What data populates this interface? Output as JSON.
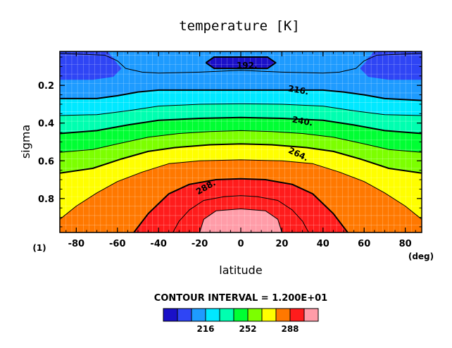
{
  "chart_data": {
    "type": "heatmap",
    "title": "temperature [K]",
    "xlabel": "latitude",
    "ylabel": "sigma",
    "x_unit": "(deg)",
    "panel_index": "(1)",
    "xlim": [
      -88,
      88
    ],
    "ylim": [
      0.02,
      0.98
    ],
    "y_inverted": true,
    "xticks": [
      -80,
      -60,
      -40,
      -20,
      0,
      20,
      40,
      60,
      80
    ],
    "yticks": [
      0.2,
      0.4,
      0.6,
      0.8
    ],
    "contour_interval_text": "CONTOUR INTERVAL = 1.200E+01",
    "contour_labels": [
      "192.",
      "216.",
      "240.",
      "264.",
      "288."
    ],
    "levels": [
      192,
      204,
      216,
      228,
      240,
      252,
      264,
      276,
      288,
      300
    ],
    "colorbar_ticks": [
      "216",
      "252",
      "288"
    ],
    "palette": [
      "#1a10c8",
      "#2f45f5",
      "#1e9bff",
      "#00e8ff",
      "#00ffb0",
      "#00ff33",
      "#7cff00",
      "#ffff00",
      "#ff7800",
      "#ff1c1c",
      "#ff9ca8"
    ],
    "contours": [
      {
        "level": 192,
        "points": [
          [
            -17,
            0.08
          ],
          [
            -13,
            0.05
          ],
          [
            13,
            0.05
          ],
          [
            17,
            0.08
          ],
          [
            13,
            0.11
          ],
          [
            -13,
            0.11
          ],
          [
            -17,
            0.08
          ]
        ]
      },
      {
        "level": 204,
        "points": [
          [
            -88,
            0.03
          ],
          [
            -66,
            0.04
          ],
          [
            -60,
            0.07
          ],
          [
            -56,
            0.11
          ],
          [
            -48,
            0.13
          ],
          [
            -40,
            0.135
          ],
          [
            -20,
            0.13
          ],
          [
            0,
            0.12
          ],
          [
            20,
            0.13
          ],
          [
            40,
            0.135
          ],
          [
            48,
            0.13
          ],
          [
            56,
            0.11
          ],
          [
            60,
            0.07
          ],
          [
            66,
            0.04
          ],
          [
            88,
            0.03
          ]
        ]
      },
      {
        "level": 216,
        "points": [
          [
            -88,
            0.27
          ],
          [
            -70,
            0.27
          ],
          [
            -60,
            0.255
          ],
          [
            -50,
            0.235
          ],
          [
            -40,
            0.225
          ],
          [
            -20,
            0.225
          ],
          [
            0,
            0.225
          ],
          [
            20,
            0.225
          ],
          [
            40,
            0.225
          ],
          [
            50,
            0.235
          ],
          [
            60,
            0.25
          ],
          [
            70,
            0.27
          ],
          [
            88,
            0.28
          ]
        ]
      },
      {
        "level": 228,
        "points": [
          [
            -88,
            0.36
          ],
          [
            -70,
            0.355
          ],
          [
            -55,
            0.335
          ],
          [
            -40,
            0.31
          ],
          [
            -20,
            0.3
          ],
          [
            0,
            0.298
          ],
          [
            20,
            0.3
          ],
          [
            40,
            0.31
          ],
          [
            55,
            0.335
          ],
          [
            70,
            0.355
          ],
          [
            88,
            0.36
          ]
        ]
      },
      {
        "level": 240,
        "points": [
          [
            -88,
            0.455
          ],
          [
            -70,
            0.44
          ],
          [
            -55,
            0.41
          ],
          [
            -40,
            0.385
          ],
          [
            -20,
            0.375
          ],
          [
            0,
            0.37
          ],
          [
            20,
            0.375
          ],
          [
            40,
            0.385
          ],
          [
            55,
            0.41
          ],
          [
            70,
            0.44
          ],
          [
            88,
            0.455
          ]
        ]
      },
      {
        "level": 252,
        "points": [
          [
            -88,
            0.555
          ],
          [
            -72,
            0.54
          ],
          [
            -60,
            0.51
          ],
          [
            -45,
            0.475
          ],
          [
            -30,
            0.455
          ],
          [
            -15,
            0.445
          ],
          [
            0,
            0.44
          ],
          [
            15,
            0.445
          ],
          [
            30,
            0.455
          ],
          [
            45,
            0.475
          ],
          [
            60,
            0.51
          ],
          [
            72,
            0.54
          ],
          [
            88,
            0.555
          ]
        ]
      },
      {
        "level": 264,
        "points": [
          [
            -88,
            0.665
          ],
          [
            -72,
            0.64
          ],
          [
            -58,
            0.59
          ],
          [
            -45,
            0.55
          ],
          [
            -32,
            0.53
          ],
          [
            -15,
            0.515
          ],
          [
            0,
            0.51
          ],
          [
            15,
            0.515
          ],
          [
            32,
            0.53
          ],
          [
            45,
            0.55
          ],
          [
            58,
            0.59
          ],
          [
            72,
            0.64
          ],
          [
            88,
            0.665
          ]
        ]
      },
      {
        "level": 276,
        "points": [
          [
            -88,
            0.91
          ],
          [
            -80,
            0.84
          ],
          [
            -70,
            0.77
          ],
          [
            -60,
            0.71
          ],
          [
            -48,
            0.66
          ],
          [
            -35,
            0.615
          ],
          [
            -20,
            0.6
          ],
          [
            0,
            0.595
          ],
          [
            20,
            0.6
          ],
          [
            35,
            0.615
          ],
          [
            48,
            0.66
          ],
          [
            60,
            0.71
          ],
          [
            70,
            0.77
          ],
          [
            80,
            0.84
          ],
          [
            88,
            0.91
          ]
        ]
      },
      {
        "level": 288,
        "points": [
          [
            -52,
            0.98
          ],
          [
            -45,
            0.88
          ],
          [
            -35,
            0.775
          ],
          [
            -25,
            0.725
          ],
          [
            -12,
            0.7
          ],
          [
            0,
            0.695
          ],
          [
            12,
            0.7
          ],
          [
            25,
            0.725
          ],
          [
            35,
            0.775
          ],
          [
            45,
            0.88
          ],
          [
            52,
            0.98
          ]
        ]
      },
      {
        "level": 300,
        "points": [
          [
            -33,
            0.98
          ],
          [
            -30,
            0.92
          ],
          [
            -25,
            0.86
          ],
          [
            -18,
            0.81
          ],
          [
            -8,
            0.79
          ],
          [
            0,
            0.785
          ],
          [
            8,
            0.79
          ],
          [
            18,
            0.81
          ],
          [
            25,
            0.86
          ],
          [
            30,
            0.92
          ],
          [
            33,
            0.98
          ]
        ]
      },
      {
        "level": 312,
        "points": [
          [
            -20,
            0.98
          ],
          [
            -18,
            0.91
          ],
          [
            -12,
            0.865
          ],
          [
            0,
            0.855
          ],
          [
            12,
            0.865
          ],
          [
            18,
            0.91
          ],
          [
            20,
            0.98
          ]
        ]
      }
    ],
    "label_positions": [
      {
        "text": "192.",
        "x": 3,
        "y": 0.095,
        "angle": 0
      },
      {
        "text": "216.",
        "x": 28,
        "y": 0.225,
        "angle": 10
      },
      {
        "text": "240.",
        "x": 30,
        "y": 0.39,
        "angle": 10
      },
      {
        "text": "264.",
        "x": 28,
        "y": 0.565,
        "angle": 25
      },
      {
        "text": "288.",
        "x": -17,
        "y": 0.74,
        "angle": -30
      }
    ],
    "grid": true,
    "legend": "colorbar-bottom"
  }
}
